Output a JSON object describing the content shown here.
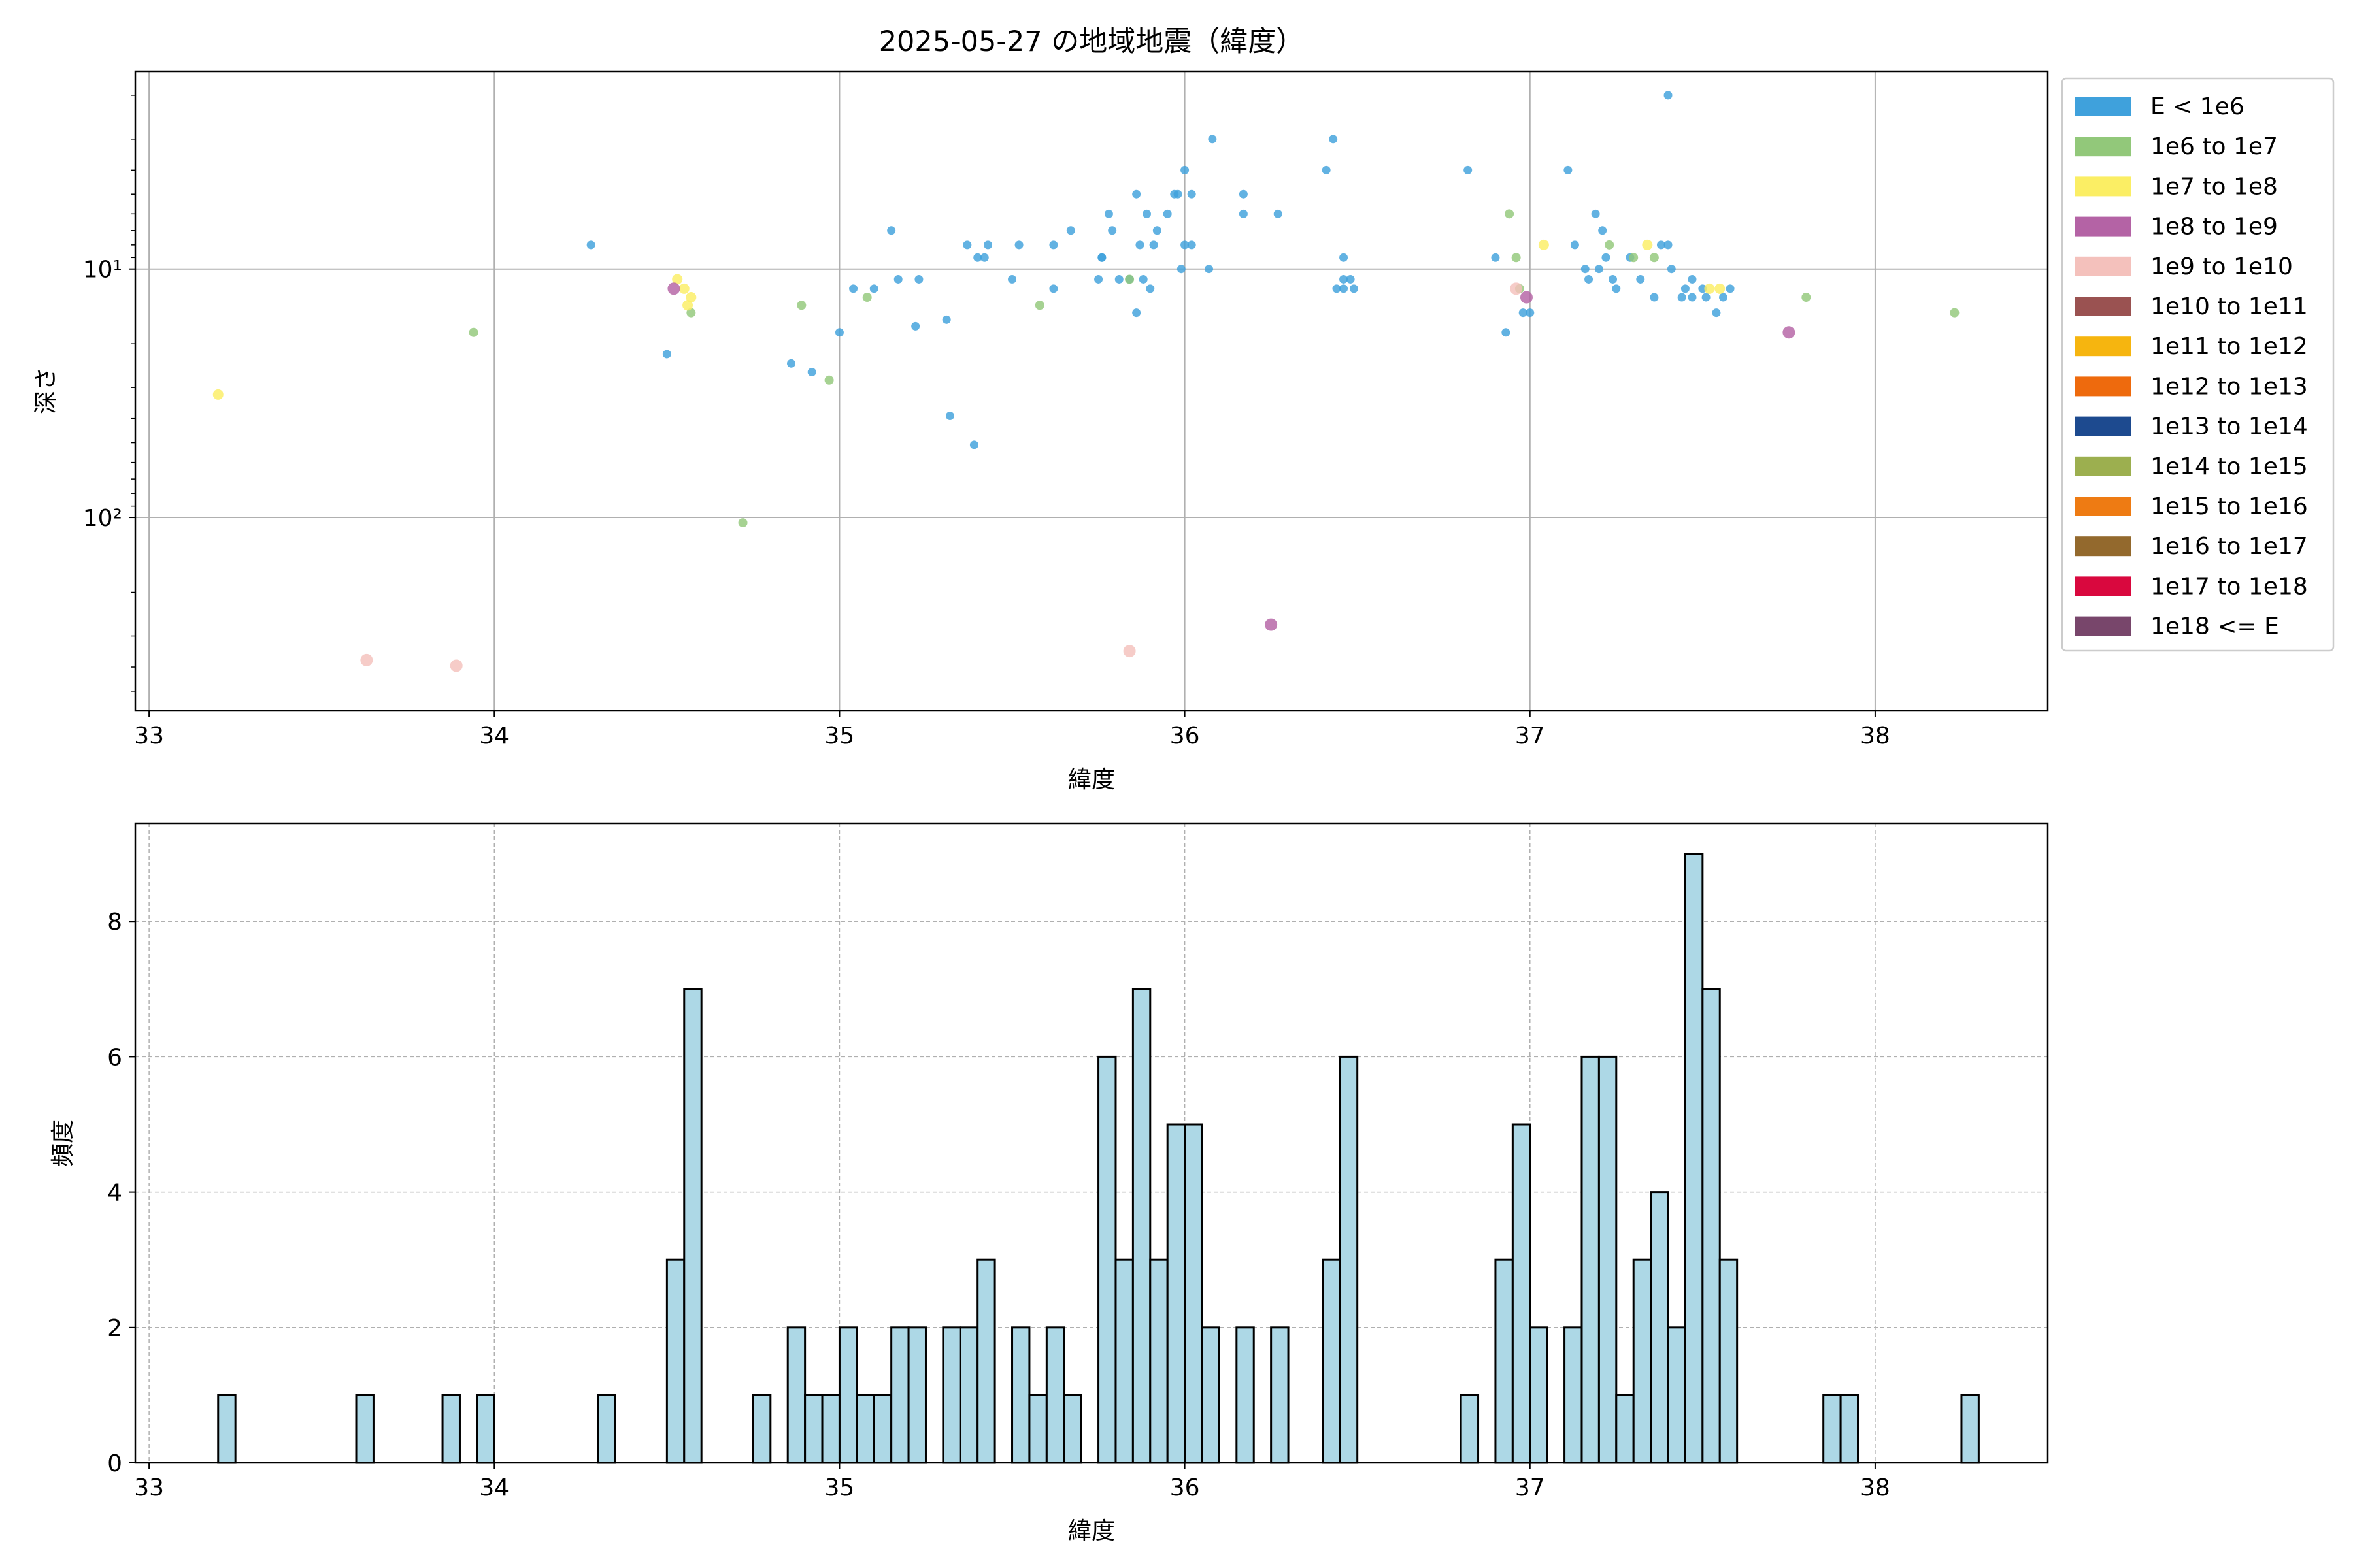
{
  "chart_data": [
    {
      "type": "scatter",
      "title": "2025-05-27 の地域地震（緯度）",
      "xlabel": "緯度",
      "ylabel": "深さ",
      "xlim": [
        32.96,
        38.5
      ],
      "ylim": [
        600,
        1.6
      ],
      "yscale": "log",
      "y_inverted": true,
      "grid": true,
      "xticks": [
        "33",
        "34",
        "35",
        "36",
        "37",
        "38"
      ],
      "yticks": [
        {
          "value": 10,
          "label": "10¹"
        },
        {
          "value": 100,
          "label": "10²"
        }
      ],
      "legend_position": "outside-right",
      "legend": [
        {
          "label": "E < 1e6",
          "color": "#3fa1dc"
        },
        {
          "label": "1e6 to 1e7",
          "color": "#92c87a"
        },
        {
          "label": "1e7 to 1e8",
          "color": "#fbee64"
        },
        {
          "label": "1e8 to 1e9",
          "color": "#b463a5"
        },
        {
          "label": "1e9 to 1e10",
          "color": "#f4c1bc"
        },
        {
          "label": "1e10 to 1e11",
          "color": "#9a5251"
        },
        {
          "label": "1e11 to 1e12",
          "color": "#f6b50f"
        },
        {
          "label": "1e12 to 1e13",
          "color": "#ee6a0d"
        },
        {
          "label": "1e13 to 1e14",
          "color": "#1d4a8f"
        },
        {
          "label": "1e14 to 1e15",
          "color": "#9caf4f"
        },
        {
          "label": "1e15 to 1e16",
          "color": "#ee7b13"
        },
        {
          "label": "1e16 to 1e17",
          "color": "#93692d"
        },
        {
          "label": "1e17 to 1e18",
          "color": "#d9083e"
        },
        {
          "label": "1e18 <= E",
          "color": "#78466b"
        }
      ],
      "series": [
        {
          "name": "E < 1e6",
          "points": [
            [
              34.28,
              8
            ],
            [
              34.5,
              22
            ],
            [
              34.86,
              24
            ],
            [
              34.92,
              26
            ],
            [
              35.0,
              18
            ],
            [
              35.04,
              12
            ],
            [
              35.1,
              12
            ],
            [
              35.15,
              7
            ],
            [
              35.17,
              11
            ],
            [
              35.22,
              17
            ],
            [
              35.23,
              11
            ],
            [
              35.31,
              16
            ],
            [
              35.32,
              39
            ],
            [
              35.37,
              8
            ],
            [
              35.39,
              51
            ],
            [
              35.4,
              9
            ],
            [
              35.42,
              9
            ],
            [
              35.43,
              8
            ],
            [
              35.5,
              11
            ],
            [
              35.52,
              8
            ],
            [
              35.62,
              8
            ],
            [
              35.62,
              12
            ],
            [
              35.67,
              7
            ],
            [
              35.75,
              11
            ],
            [
              35.76,
              9
            ],
            [
              35.76,
              9
            ],
            [
              35.78,
              6
            ],
            [
              35.79,
              7
            ],
            [
              35.81,
              11
            ],
            [
              35.84,
              11
            ],
            [
              35.86,
              15
            ],
            [
              35.86,
              5
            ],
            [
              35.87,
              8
            ],
            [
              35.88,
              11
            ],
            [
              35.89,
              6
            ],
            [
              35.9,
              12
            ],
            [
              35.91,
              8
            ],
            [
              35.92,
              7
            ],
            [
              35.95,
              6
            ],
            [
              35.97,
              5
            ],
            [
              35.98,
              5
            ],
            [
              35.99,
              10
            ],
            [
              36.0,
              4
            ],
            [
              36.0,
              8
            ],
            [
              36.02,
              5
            ],
            [
              36.02,
              8
            ],
            [
              36.07,
              10
            ],
            [
              36.08,
              3
            ],
            [
              36.17,
              5
            ],
            [
              36.17,
              6
            ],
            [
              36.27,
              6
            ],
            [
              36.41,
              4
            ],
            [
              36.43,
              3
            ],
            [
              36.44,
              12
            ],
            [
              36.46,
              12
            ],
            [
              36.46,
              9
            ],
            [
              36.46,
              11
            ],
            [
              36.48,
              11
            ],
            [
              36.49,
              12
            ],
            [
              36.82,
              4
            ],
            [
              36.9,
              9
            ],
            [
              36.93,
              18
            ],
            [
              36.98,
              15
            ],
            [
              37.0,
              15
            ],
            [
              37.11,
              4
            ],
            [
              37.13,
              8
            ],
            [
              37.16,
              10
            ],
            [
              37.17,
              11
            ],
            [
              37.19,
              6
            ],
            [
              37.2,
              10
            ],
            [
              37.21,
              7
            ],
            [
              37.22,
              9
            ],
            [
              37.24,
              11
            ],
            [
              37.25,
              12
            ],
            [
              37.29,
              9
            ],
            [
              37.32,
              11
            ],
            [
              37.36,
              13
            ],
            [
              37.38,
              8
            ],
            [
              37.41,
              10
            ],
            [
              37.44,
              13
            ],
            [
              37.45,
              12
            ],
            [
              37.47,
              11
            ],
            [
              37.47,
              13
            ],
            [
              37.5,
              12
            ],
            [
              37.51,
              13
            ],
            [
              37.54,
              15
            ],
            [
              37.56,
              13
            ],
            [
              37.58,
              12
            ],
            [
              37.4,
              2
            ],
            [
              37.4,
              8
            ]
          ]
        },
        {
          "name": "1e6 to 1e7",
          "points": [
            [
              33.94,
              18
            ],
            [
              34.57,
              15
            ],
            [
              34.72,
              105
            ],
            [
              34.89,
              14
            ],
            [
              34.97,
              28
            ],
            [
              35.08,
              13
            ],
            [
              35.58,
              14
            ],
            [
              35.84,
              11
            ],
            [
              36.94,
              6
            ],
            [
              36.96,
              9
            ],
            [
              36.97,
              12
            ],
            [
              37.23,
              8
            ],
            [
              37.3,
              9
            ],
            [
              37.36,
              9
            ],
            [
              37.8,
              13
            ],
            [
              38.23,
              15
            ]
          ]
        },
        {
          "name": "1e7 to 1e8",
          "points": [
            [
              33.2,
              32
            ],
            [
              34.53,
              11
            ],
            [
              34.55,
              12
            ],
            [
              34.56,
              14
            ],
            [
              34.57,
              13
            ],
            [
              37.04,
              8
            ],
            [
              37.34,
              8
            ],
            [
              37.52,
              12
            ],
            [
              37.55,
              12
            ]
          ]
        },
        {
          "name": "1e8 to 1e9",
          "points": [
            [
              34.52,
              12
            ],
            [
              36.25,
              270
            ],
            [
              36.99,
              13
            ],
            [
              37.75,
              18
            ]
          ]
        },
        {
          "name": "1e9 to 1e10",
          "points": [
            [
              33.63,
              375
            ],
            [
              33.89,
              395
            ],
            [
              35.84,
              345
            ],
            [
              36.96,
              12
            ]
          ]
        }
      ]
    },
    {
      "type": "bar",
      "subtype": "histogram",
      "xlabel": "緯度",
      "ylabel": "頻度",
      "xlim": [
        32.96,
        38.5
      ],
      "ylim": [
        0,
        9.45
      ],
      "grid": true,
      "bar_color": "#add8e6",
      "xticks": [
        "33",
        "34",
        "35",
        "36",
        "37",
        "38"
      ],
      "yticks": [
        "0",
        "2",
        "4",
        "6",
        "8"
      ],
      "bin_start": 33.0,
      "bin_width": 0.05,
      "counts": [
        0,
        0,
        0,
        0,
        1,
        0,
        0,
        0,
        0,
        0,
        0,
        0,
        1,
        0,
        0,
        0,
        0,
        1,
        0,
        1,
        0,
        0,
        0,
        0,
        0,
        0,
        1,
        0,
        0,
        0,
        3,
        7,
        0,
        0,
        0,
        1,
        0,
        2,
        1,
        1,
        2,
        1,
        1,
        2,
        2,
        0,
        2,
        2,
        3,
        0,
        2,
        1,
        2,
        1,
        0,
        6,
        3,
        7,
        3,
        5,
        5,
        2,
        0,
        2,
        0,
        2,
        0,
        0,
        3,
        6,
        0,
        0,
        0,
        0,
        0,
        0,
        1,
        0,
        3,
        5,
        2,
        0,
        2,
        6,
        6,
        1,
        3,
        4,
        2,
        9,
        7,
        3,
        0,
        0,
        0,
        0,
        0,
        1,
        1,
        0,
        0,
        0,
        0,
        0,
        0,
        1
      ]
    }
  ]
}
